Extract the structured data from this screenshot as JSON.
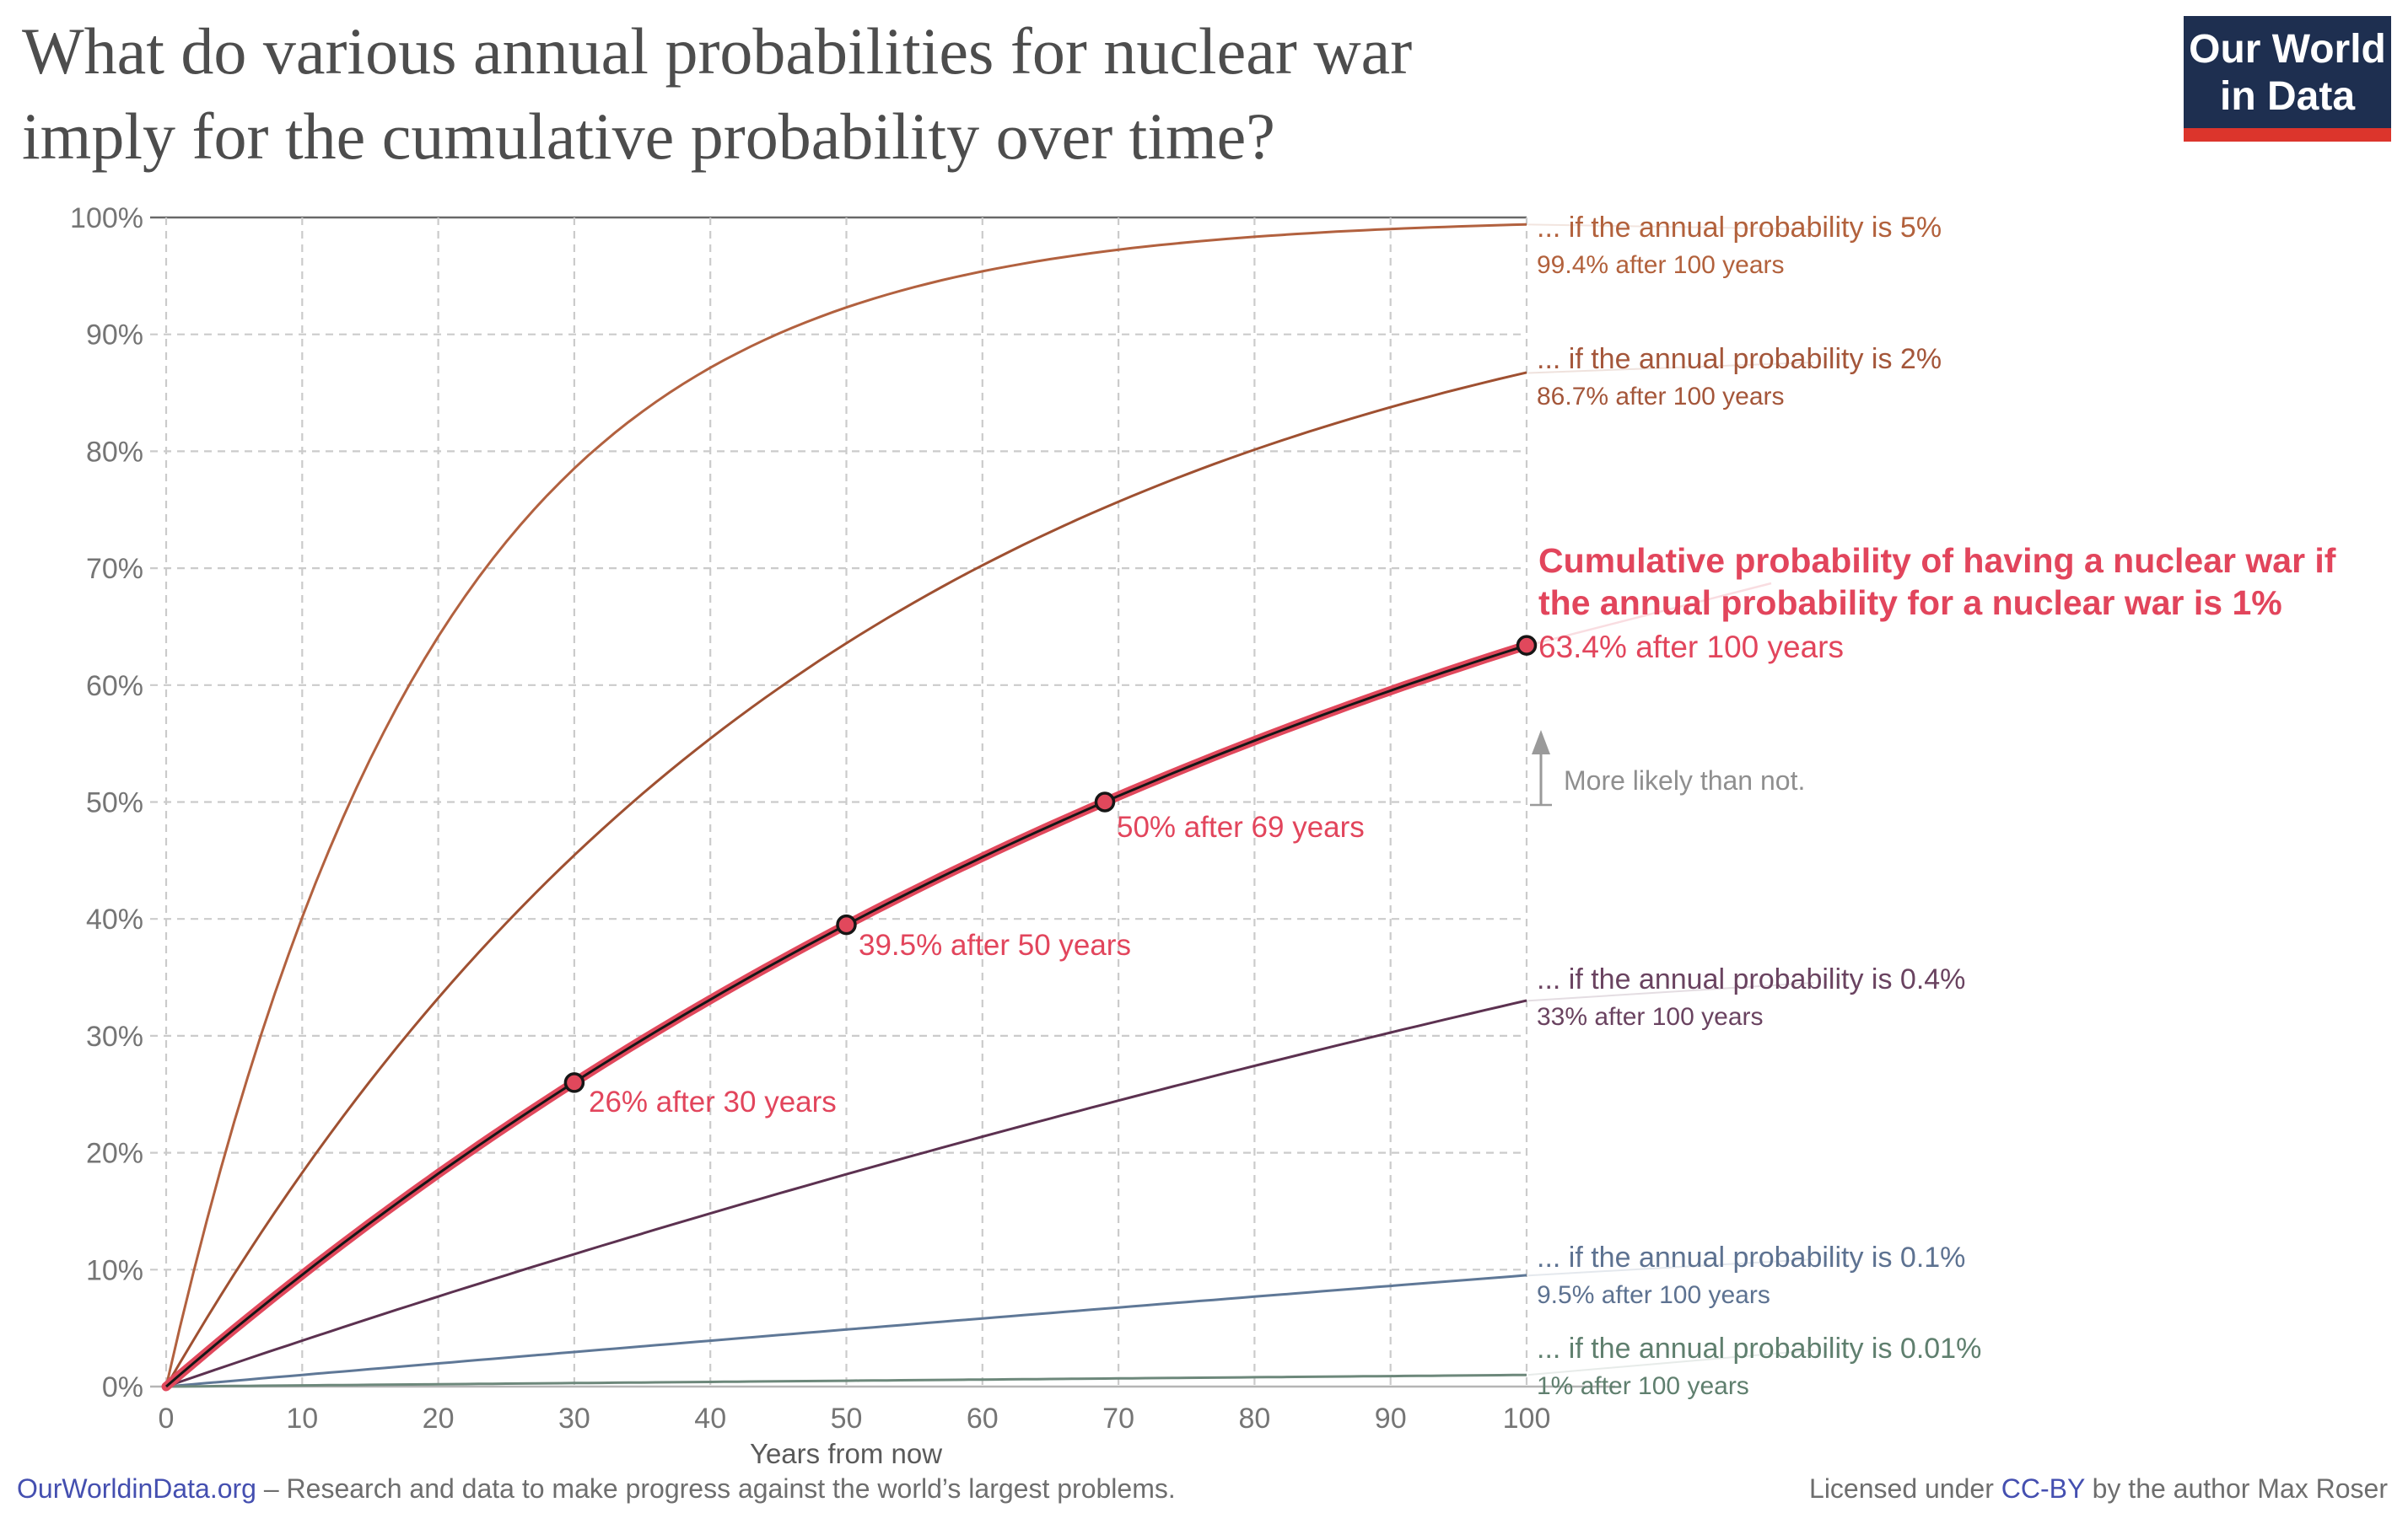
{
  "header": {
    "title_line1": "What do various annual probabilities for nuclear war",
    "title_line2": "imply for the cumulative probability over time?",
    "logo": {
      "line1": "Our World",
      "line2": "in Data",
      "bg_color": "#1e2f50",
      "bar_color": "#dc352c"
    }
  },
  "chart_data": {
    "type": "line",
    "title": "What do various annual probabilities for nuclear war imply for the cumulative probability over time?",
    "xlabel": "Years from now",
    "x_range": [
      0,
      100
    ],
    "y_range_percent": [
      0,
      100
    ],
    "x_ticks": [
      0,
      10,
      20,
      30,
      40,
      50,
      60,
      70,
      80,
      90,
      100
    ],
    "y_ticks_percent": [
      0,
      10,
      20,
      30,
      40,
      50,
      60,
      70,
      80,
      90,
      100
    ],
    "grid": "dashed, both axes; top 100% line solid",
    "legend_position": "right edge, one label per curve end",
    "sample_years": [
      0,
      10,
      20,
      30,
      40,
      50,
      60,
      70,
      80,
      90,
      100
    ],
    "series": [
      {
        "name": "annual probability 5%",
        "annual_probability_percent": 5,
        "color": "#b2613f",
        "label": "... if the annual probability is 5%",
        "sublabel": "99.4% after 100 years",
        "final_value_percent": 99.4,
        "cumulative_percent_by_decade": [
          0,
          40.1,
          64.2,
          78.5,
          87.1,
          92.3,
          95.4,
          97.2,
          98.3,
          99.0,
          99.4
        ]
      },
      {
        "name": "annual probability 2%",
        "annual_probability_percent": 2,
        "color": "#9f5031",
        "label": "... if the annual probability is 2%",
        "sublabel": "86.7% after 100 years",
        "final_value_percent": 86.7,
        "cumulative_percent_by_decade": [
          0,
          18.3,
          33.2,
          45.4,
          55.4,
          63.6,
          70.2,
          75.7,
          80.1,
          83.8,
          86.7
        ]
      },
      {
        "name": "annual probability 0.4%",
        "annual_probability_percent": 0.4,
        "color": "#5c3150",
        "label": "... if the annual probability is 0.4%",
        "sublabel": "33% after 100 years",
        "final_value_percent": 33,
        "cumulative_percent_by_decade": [
          0,
          3.9,
          7.7,
          11.3,
          14.8,
          18.1,
          21.3,
          24.4,
          27.4,
          30.2,
          33.0
        ]
      },
      {
        "name": "annual probability 0.1%",
        "annual_probability_percent": 0.1,
        "color": "#5f7897",
        "label": "... if the annual probability is 0.1%",
        "sublabel": "9.5% after 100 years",
        "final_value_percent": 9.5,
        "cumulative_percent_by_decade": [
          0,
          1.0,
          2.0,
          3.0,
          3.9,
          4.9,
          5.8,
          6.8,
          7.7,
          8.6,
          9.5
        ]
      },
      {
        "name": "annual probability 0.01%",
        "annual_probability_percent": 0.01,
        "color": "#6d887b",
        "label": "... if the annual probability is 0.01%",
        "sublabel": "1% after 100 years",
        "final_value_percent": 1,
        "cumulative_percent_by_decade": [
          0,
          0.1,
          0.2,
          0.3,
          0.4,
          0.5,
          0.6,
          0.7,
          0.8,
          0.9,
          1.0
        ]
      }
    ],
    "highlight_series": {
      "name": "annual probability 1%",
      "annual_probability_percent": 1,
      "color": "#e1485c",
      "core_color": "#161616",
      "label_line1": "Cumulative probability of having a nuclear war if",
      "label_line2": "the annual probability for a nuclear war is 1%",
      "sublabel": "63.4% after 100 years",
      "final_value_percent": 63.4,
      "cumulative_percent_by_decade": [
        0,
        9.6,
        18.2,
        26.0,
        33.1,
        39.5,
        45.3,
        50.5,
        55.2,
        59.5,
        63.4
      ],
      "points": [
        {
          "year": 30,
          "value_percent": 26,
          "label": "26% after 30 years"
        },
        {
          "year": 50,
          "value_percent": 39.5,
          "label": "39.5% after 50 years"
        },
        {
          "year": 69,
          "value_percent": 50,
          "label": "50% after 69 years"
        },
        {
          "year": 100,
          "value_percent": 63.4,
          "label": ""
        }
      ]
    },
    "annotation": {
      "text": "More likely than not.",
      "at_percent": 50
    }
  },
  "footer": {
    "left_link": "OurWorldinData.org",
    "left_rest": " – Research and data to make progress against the world’s largest problems.",
    "right_pre": "Licensed under ",
    "right_link": "CC-BY",
    "right_post": " by the author Max Roser",
    "link_color": "#444fb0"
  }
}
